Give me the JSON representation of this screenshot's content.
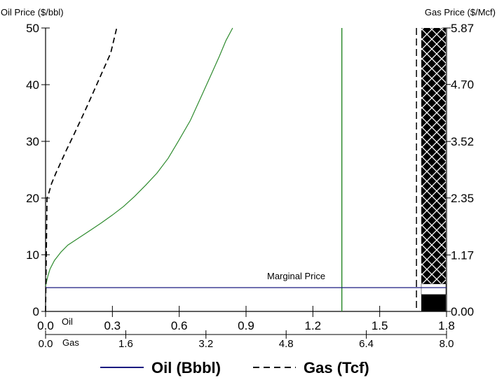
{
  "chart_data": {
    "type": "line",
    "left_axis": {
      "label": "Oil Price ($/bbl)",
      "ticks": [
        "0",
        "10",
        "20",
        "30",
        "40",
        "50"
      ],
      "ylim": [
        0,
        50
      ]
    },
    "right_axis": {
      "label": "Gas Price ($/Mcf)",
      "ticks": [
        "0.00",
        "1.17",
        "2.35",
        "3.52",
        "4.70",
        "5.87"
      ],
      "ylim": [
        0,
        5.87
      ]
    },
    "oil_x_axis": {
      "label": "Oil",
      "ticks": [
        "0.0",
        "0.3",
        "0.6",
        "0.9",
        "1.2",
        "1.5",
        "1.8"
      ],
      "xlim": [
        0,
        1.8
      ]
    },
    "gas_x_axis": {
      "label": "Gas",
      "ticks": [
        "0.0",
        "1.6",
        "3.2",
        "4.8",
        "6.4",
        "8.0"
      ],
      "xlim": [
        0,
        8.0
      ]
    },
    "series": [
      {
        "name": "Oil (Bbbl)",
        "color": "#2e8b2e",
        "style": "solid",
        "x": [
          0.0,
          0.01,
          0.02,
          0.04,
          0.07,
          0.1,
          0.15,
          0.2,
          0.25,
          0.3,
          0.35,
          0.4,
          0.45,
          0.5,
          0.55,
          0.6,
          0.65,
          0.7,
          0.74,
          0.78,
          0.81,
          0.84
        ],
        "y": [
          4.5,
          6.2,
          7.5,
          9.0,
          10.5,
          11.7,
          13.0,
          14.3,
          15.6,
          17.0,
          18.5,
          20.3,
          22.3,
          24.4,
          27.0,
          30.3,
          33.7,
          38.0,
          41.5,
          45.0,
          47.8,
          50.0
        ]
      },
      {
        "name": "Gas (Tcf)",
        "color": "#000000",
        "style": "dashed",
        "x": [
          0.0,
          0.03,
          0.07,
          0.12,
          0.2,
          0.3,
          0.42,
          0.56,
          0.7,
          0.85,
          1.0,
          1.15,
          1.3,
          1.42
        ],
        "y": [
          0.0,
          2.35,
          2.47,
          2.65,
          2.85,
          3.08,
          3.35,
          3.65,
          3.96,
          4.3,
          4.65,
          5.0,
          5.35,
          5.87
        ]
      }
    ],
    "marginal_price": {
      "label": "Marginal Price",
      "oil_price": 4.2,
      "color": "#1a1a80"
    },
    "reference_lines": [
      {
        "axis": "oil",
        "x": 1.33,
        "color": "#2e8b2e",
        "style": "solid"
      },
      {
        "axis": "gas",
        "x": 7.4,
        "color": "#000000",
        "style": "dashed"
      }
    ],
    "legend": {
      "placement": "bottom",
      "entries": [
        {
          "label": "Oil (Bbbl)",
          "style": "solid",
          "color": "#1a1a80"
        },
        {
          "label": "Gas (Tcf)",
          "style": "dashed",
          "color": "#000000"
        }
      ]
    },
    "price_bar": {
      "crosshatch_from": 0.57,
      "crosshatch_to": 5.87,
      "white_from": 0.35,
      "white_to": 0.57,
      "solid_from": 0.0,
      "solid_to": 0.35
    }
  }
}
